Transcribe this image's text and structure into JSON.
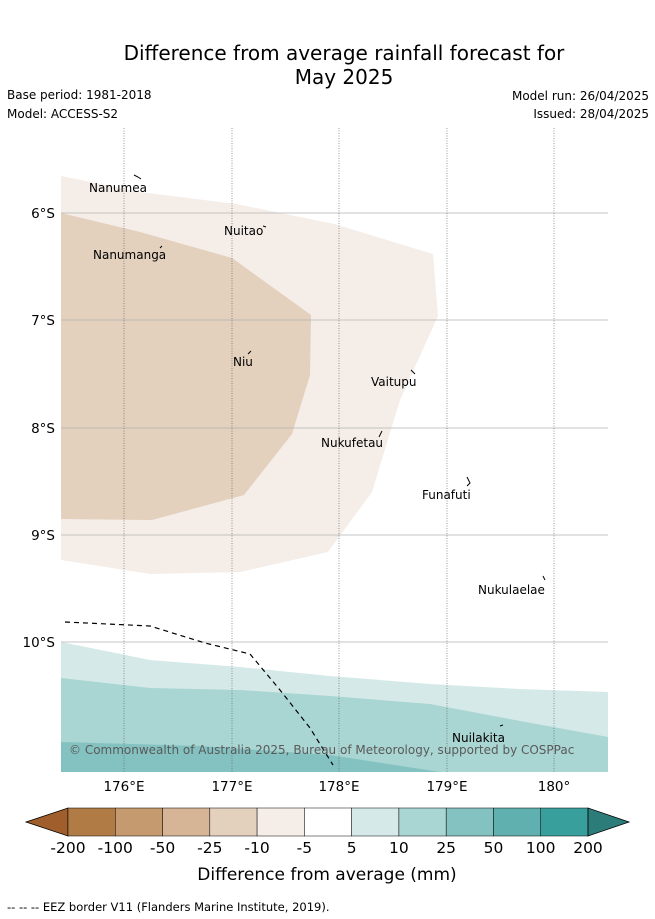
{
  "title": {
    "line1": "Difference from average rainfall forecast for",
    "line2": "May 2025"
  },
  "meta": {
    "base_period": "Base period: 1981-2018",
    "model": "Model: ACCESS-S2",
    "model_run": "Model run: 26/04/2025",
    "issued": "Issued: 28/04/2025"
  },
  "map": {
    "lon_ticks": [
      "176°E",
      "177°E",
      "178°E",
      "179°E",
      "180°"
    ],
    "lat_ticks": [
      "6°S",
      "7°S",
      "8°S",
      "9°S",
      "10°S"
    ],
    "islands": [
      {
        "name": "Nanumea",
        "lon": 176.1,
        "lat": -5.68
      },
      {
        "name": "Nuitao",
        "lon": 177.3,
        "lat": -6.11
      },
      {
        "name": "Nanumanga",
        "lon": 176.3,
        "lat": -6.3
      },
      {
        "name": "Niu",
        "lon": 177.33,
        "lat": -7.28
      },
      {
        "name": "Vaitupu",
        "lon": 178.67,
        "lat": -7.47
      },
      {
        "name": "Nukufetau",
        "lon": 178.38,
        "lat": -8.03
      },
      {
        "name": "Funafuti",
        "lon": 179.2,
        "lat": -8.52
      },
      {
        "name": "Nukulaelae",
        "lon": 179.85,
        "lat": -9.38
      },
      {
        "name": "Nuilakita",
        "lon": 179.5,
        "lat": -10.75
      }
    ],
    "copyright": "© Commonwealth of Australia 2025, Bureau of Meteorology, supported by COSPPac"
  },
  "colorbar": {
    "colors": [
      "#9f5e2b",
      "#b17b45",
      "#c49a6e",
      "#d5b595",
      "#e3d0bd",
      "#f5ede8",
      "#ffffff",
      "#d5eae8",
      "#a9d5d3",
      "#84c2c1",
      "#5fb0ae",
      "#389f9d",
      "#2c7d7a"
    ],
    "ticks": [
      "-200",
      "-100",
      "-50",
      "-25",
      "-10",
      "-5",
      "5",
      "10",
      "25",
      "50",
      "100",
      "200"
    ],
    "label": "Difference from average (mm)"
  },
  "footer": {
    "legend_text": "-- -- -- EEZ border V11 (Flanders Marine Institute, 2019)."
  }
}
